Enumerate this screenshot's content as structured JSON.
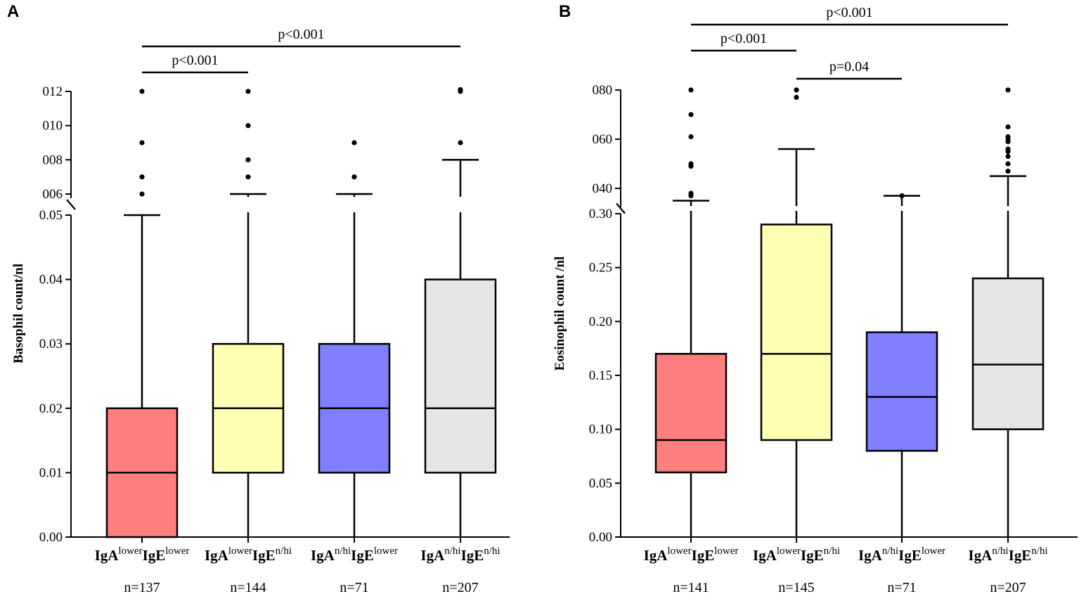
{
  "chart_data": [
    {
      "type": "box",
      "panel": "A",
      "ylabel": "Basophil count/nl",
      "y_lower_segment": {
        "range": [
          0,
          0.05
        ],
        "ticks": [
          "0.00",
          "0.01",
          "0.02",
          "0.03",
          "0.04",
          "0.05"
        ],
        "tick_values": [
          0,
          0.01,
          0.02,
          0.03,
          0.04,
          0.05
        ]
      },
      "y_upper_segment": {
        "range": [
          0.06,
          0.12
        ],
        "ticks": [
          "006",
          "008",
          "010",
          "012"
        ],
        "tick_values": [
          0.06,
          0.08,
          0.1,
          0.12
        ]
      },
      "colors": [
        "#ff7f7f",
        "#ffffb3",
        "#7f7fff",
        "#e6e6e6"
      ],
      "groups": [
        {
          "a_base": "IgA",
          "a_sup": "lower",
          "e_base": "IgE",
          "e_sup": "lower",
          "n": "n=137",
          "q1": 0.0,
          "median": 0.01,
          "q3": 0.02,
          "whisker_low": 0.0,
          "whisker_high": 0.05,
          "outliers": [
            0.06,
            0.07,
            0.09,
            0.12
          ]
        },
        {
          "a_base": "IgA",
          "a_sup": "lower",
          "e_base": "IgE",
          "e_sup": "n/hi",
          "n": "n=144",
          "q1": 0.01,
          "median": 0.02,
          "q3": 0.03,
          "whisker_low": 0.0,
          "whisker_high": 0.06,
          "outliers": [
            0.07,
            0.08,
            0.1,
            0.12
          ]
        },
        {
          "a_base": "IgA",
          "a_sup": "n/hi",
          "e_base": "IgE",
          "e_sup": "lower",
          "n": "n=71",
          "q1": 0.01,
          "median": 0.02,
          "q3": 0.03,
          "whisker_low": 0.0,
          "whisker_high": 0.06,
          "outliers": [
            0.07,
            0.09
          ]
        },
        {
          "a_base": "IgA",
          "a_sup": "n/hi",
          "e_base": "IgE",
          "e_sup": "n/hi",
          "n": "n=207",
          "q1": 0.01,
          "median": 0.02,
          "q3": 0.04,
          "whisker_low": 0.0,
          "whisker_high": 0.08,
          "outliers": [
            0.09,
            0.12,
            0.121
          ]
        }
      ],
      "comparisons": [
        {
          "from": 0,
          "to": 1,
          "label": "p<0.001",
          "level": 1
        },
        {
          "from": 0,
          "to": 3,
          "label": "p<0.001",
          "level": 2
        }
      ]
    },
    {
      "type": "box",
      "panel": "B",
      "ylabel": "Eosinophil count /nl",
      "y_lower_segment": {
        "range": [
          0,
          0.3
        ],
        "ticks": [
          "0.00",
          "0.05",
          "0.10",
          "0.15",
          "0.20",
          "0.25",
          "0.30"
        ],
        "tick_values": [
          0,
          0.05,
          0.1,
          0.15,
          0.2,
          0.25,
          0.3
        ]
      },
      "y_upper_segment": {
        "range": [
          0.34,
          0.8
        ],
        "ticks": [
          "040",
          "060",
          "080"
        ],
        "tick_values": [
          0.4,
          0.6,
          0.8
        ]
      },
      "colors": [
        "#ff7f7f",
        "#ffffb3",
        "#7f7fff",
        "#e6e6e6"
      ],
      "groups": [
        {
          "a_base": "IgA",
          "a_sup": "lower",
          "e_base": "IgE",
          "e_sup": "lower",
          "n": "n=141",
          "q1": 0.06,
          "median": 0.09,
          "q3": 0.17,
          "whisker_low": 0.0,
          "whisker_high": 0.35,
          "outliers": [
            0.37,
            0.38,
            0.49,
            0.5,
            0.61,
            0.7,
            0.8
          ]
        },
        {
          "a_base": "IgA",
          "a_sup": "lower",
          "e_base": "IgE",
          "e_sup": "n/hi",
          "n": "n=145",
          "q1": 0.09,
          "median": 0.17,
          "q3": 0.29,
          "whisker_low": 0.0,
          "whisker_high": 0.56,
          "outliers": [
            0.77,
            0.8
          ]
        },
        {
          "a_base": "IgA",
          "a_sup": "n/hi",
          "e_base": "IgE",
          "e_sup": "lower",
          "n": "n=71",
          "q1": 0.08,
          "median": 0.13,
          "q3": 0.19,
          "whisker_low": 0.0,
          "whisker_high": 0.37,
          "outliers": [
            0.37
          ]
        },
        {
          "a_base": "IgA",
          "a_sup": "n/hi",
          "e_base": "IgE",
          "e_sup": "n/hi",
          "n": "n=207",
          "q1": 0.1,
          "median": 0.16,
          "q3": 0.24,
          "whisker_low": 0.0,
          "whisker_high": 0.45,
          "outliers": [
            0.47,
            0.5,
            0.53,
            0.55,
            0.56,
            0.59,
            0.6,
            0.61,
            0.65,
            0.8
          ]
        }
      ],
      "comparisons": [
        {
          "from": 0,
          "to": 1,
          "label": "p<0.001",
          "level": 2
        },
        {
          "from": 1,
          "to": 2,
          "label": "p=0.04",
          "level": 1
        },
        {
          "from": 0,
          "to": 3,
          "label": "p<0.001",
          "level": 3
        }
      ]
    }
  ]
}
